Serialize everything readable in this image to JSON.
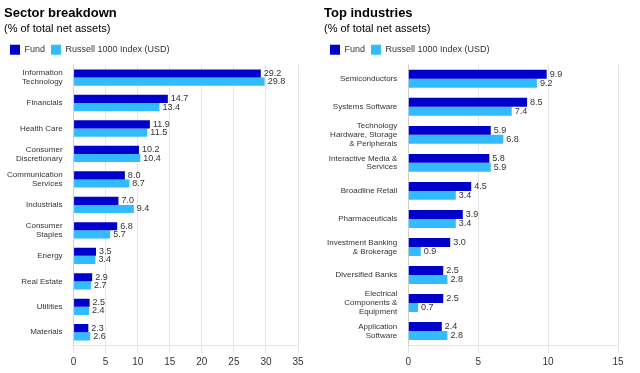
{
  "chart_data": [
    {
      "type": "bar",
      "orientation": "horizontal",
      "title": "Sector breakdown",
      "subtitle": "(% of total net assets)",
      "categories": [
        "Information\nTechnology",
        "Financials",
        "Health Care",
        "Consumer\nDiscretionary",
        "Communication\nServices",
        "Industrials",
        "Consumer\nStaples",
        "Energy",
        "Real Estate",
        "Utilities",
        "Materials"
      ],
      "series": [
        {
          "name": "Fund",
          "color": "#0000CC",
          "values": [
            29.2,
            14.7,
            11.9,
            10.2,
            8.0,
            7.0,
            6.8,
            3.5,
            2.9,
            2.5,
            2.3
          ],
          "value_labels": [
            "29.2",
            "14.7",
            "11.9",
            "10.2",
            "8.0",
            "7.0",
            "6.8",
            "3.5",
            "2.9",
            "2.5",
            "2.3"
          ]
        },
        {
          "name": "Russell 1000 Index (USD)",
          "color": "#33BBFF",
          "values": [
            29.8,
            13.4,
            11.5,
            10.4,
            8.7,
            9.4,
            5.7,
            3.4,
            2.7,
            2.4,
            2.6
          ],
          "value_labels": [
            "29.8",
            "13.4",
            "11.5",
            "10.4",
            "8.7",
            "9.4",
            "5.7",
            "3.4",
            "2.7",
            "2.4",
            "2.6"
          ]
        }
      ],
      "xlim": [
        0,
        35
      ],
      "xticks": [
        0,
        5,
        10,
        15,
        20,
        25,
        30,
        35
      ],
      "grid": true,
      "legend": "upper left",
      "data_labels": true
    },
    {
      "type": "bar",
      "orientation": "horizontal",
      "title": "Top industries",
      "subtitle": "(% of total net assets)",
      "categories": [
        "Semiconductors",
        "Systems Software",
        "Technology\nHardware, Storage\n& Peripherals",
        "Interactive Media &\nServices",
        "Broadline Retail",
        "Pharmaceuticals",
        "Investment Banking\n& Brokerage",
        "Diversified Banks",
        "Electrical\nComponents &\nEquipment",
        "Application\nSoftware"
      ],
      "series": [
        {
          "name": "Fund",
          "color": "#0000CC",
          "values": [
            9.9,
            8.5,
            5.9,
            5.8,
            4.5,
            3.9,
            3.0,
            2.5,
            2.5,
            2.4
          ],
          "value_labels": [
            "9.9",
            "8.5",
            "5.9",
            "5.8",
            "4.5",
            "3.9",
            "3.0",
            "2.5",
            "2.5",
            "2.4"
          ]
        },
        {
          "name": "Russell 1000 Index (USD)",
          "color": "#33BBFF",
          "values": [
            9.2,
            7.4,
            6.8,
            5.9,
            3.4,
            3.4,
            0.9,
            2.8,
            0.7,
            2.8
          ],
          "value_labels": [
            "9.2",
            "7.4",
            "6.8",
            "5.9",
            "3.4",
            "3.4",
            "0.9",
            "2.8",
            "0.7",
            "2.8"
          ]
        }
      ],
      "xlim": [
        0,
        15
      ],
      "xticks": [
        0,
        5,
        10,
        15
      ],
      "grid": true,
      "legend": "upper left",
      "data_labels": true
    }
  ]
}
